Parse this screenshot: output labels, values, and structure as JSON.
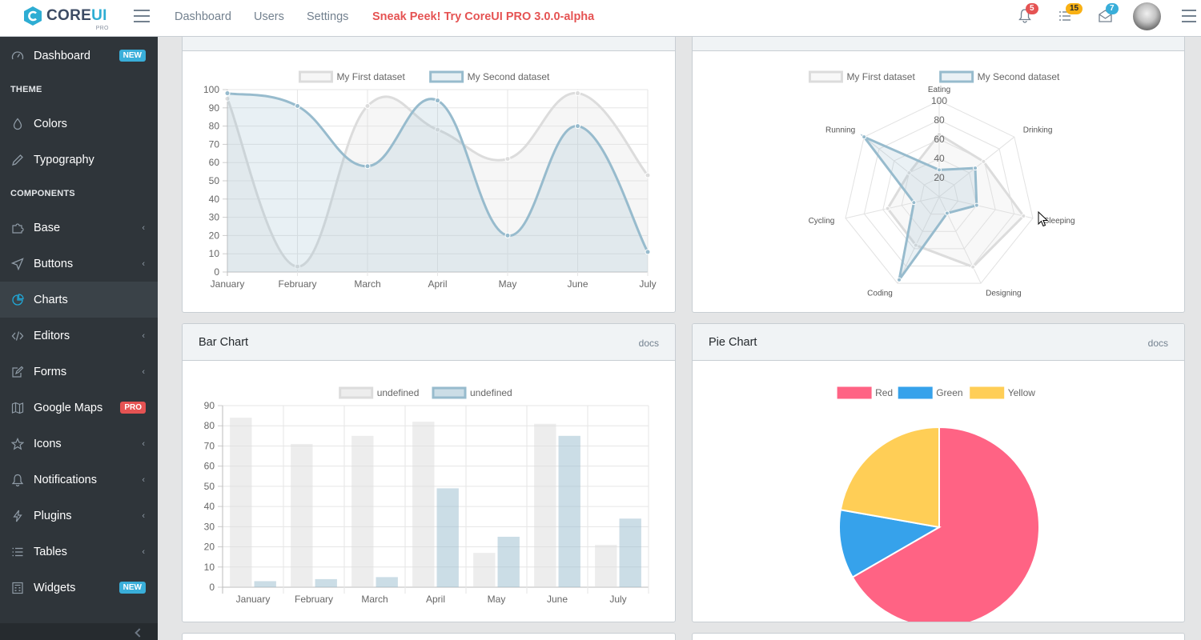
{
  "header": {
    "brand": {
      "main": "CORE",
      "accent": "UI",
      "tag": "PRO"
    },
    "nav": [
      "Dashboard",
      "Users",
      "Settings"
    ],
    "promo": "Sneak Peek! Try CoreUI PRO 3.0.0-alpha",
    "badges": {
      "notifications": "5",
      "tasks": "15",
      "messages": "7"
    },
    "colors": {
      "danger": "#e55353",
      "warning": "#f9b115",
      "info": "#39aed9"
    }
  },
  "sidebar": {
    "items": [
      {
        "label": "Dashboard",
        "badge": "NEW",
        "icon": "speedometer-icon"
      },
      {
        "label": "Colors",
        "icon": "drop-icon"
      },
      {
        "label": "Typography",
        "icon": "pencil-icon"
      },
      {
        "label": "Base",
        "icon": "puzzle-icon",
        "chevron": "‹"
      },
      {
        "label": "Buttons",
        "icon": "cursor-icon",
        "chevron": "‹"
      },
      {
        "label": "Charts",
        "icon": "pie-chart-icon"
      },
      {
        "label": "Editors",
        "icon": "code-icon",
        "chevron": "‹"
      },
      {
        "label": "Forms",
        "icon": "note-icon",
        "chevron": "‹"
      },
      {
        "label": "Google Maps",
        "badge": "PRO",
        "icon": "map-icon"
      },
      {
        "label": "Icons",
        "icon": "star-icon",
        "chevron": "‹"
      },
      {
        "label": "Notifications",
        "icon": "bell-icon",
        "chevron": "‹"
      },
      {
        "label": "Plugins",
        "icon": "energy-icon",
        "chevron": "‹"
      },
      {
        "label": "Tables",
        "icon": "list-icon",
        "chevron": "‹"
      },
      {
        "label": "Widgets",
        "badge": "NEW",
        "icon": "calculator-icon"
      }
    ],
    "titles": {
      "theme": "THEME",
      "components": "COMPONENTS"
    },
    "colors": {
      "new_badge": "#39aed9",
      "pro_badge": "#e55353",
      "accent": "#20a8d8"
    }
  },
  "cards": {
    "bar": {
      "title": "Bar Chart",
      "docs": "docs"
    },
    "pie": {
      "title": "Pie Chart",
      "docs": "docs"
    }
  },
  "chart_data": [
    {
      "type": "line",
      "title": "",
      "categories": [
        "January",
        "February",
        "March",
        "April",
        "May",
        "June",
        "July"
      ],
      "ylim": [
        0,
        100
      ],
      "yticks": [
        0,
        10,
        20,
        30,
        40,
        50,
        60,
        70,
        80,
        90,
        100
      ],
      "series": [
        {
          "name": "My First dataset",
          "values": [
            95,
            3,
            91,
            78,
            62,
            98,
            53
          ],
          "color": "#dcdcdc",
          "fill": "rgba(220,220,220,0.25)"
        },
        {
          "name": "My Second dataset",
          "values": [
            98,
            91,
            58,
            94,
            20,
            80,
            11
          ],
          "color": "#97bbcd",
          "fill": "rgba(151,187,205,0.22)"
        }
      ]
    },
    {
      "type": "radar",
      "title": "",
      "categories": [
        "Eating",
        "Drinking",
        "Sleeping",
        "Designing",
        "Coding",
        "Cycling",
        "Running"
      ],
      "rlim": [
        0,
        100
      ],
      "rticks": [
        20,
        40,
        60,
        80,
        100
      ],
      "series": [
        {
          "name": "My First dataset",
          "values": [
            65,
            59,
            90,
            81,
            56,
            55,
            40
          ],
          "color": "#dcdcdc",
          "fill": "rgba(220,220,220,0.2)"
        },
        {
          "name": "My Second dataset",
          "values": [
            28,
            48,
            40,
            19,
            96,
            27,
            100
          ],
          "color": "#97bbcd",
          "fill": "rgba(151,187,205,0.2)"
        }
      ]
    },
    {
      "type": "bar",
      "title": "Bar Chart",
      "categories": [
        "January",
        "February",
        "March",
        "April",
        "May",
        "June",
        "July"
      ],
      "ylim": [
        0,
        90
      ],
      "yticks": [
        0,
        10,
        20,
        30,
        40,
        50,
        60,
        70,
        80,
        90
      ],
      "series": [
        {
          "name": "undefined",
          "values": [
            84,
            71,
            75,
            82,
            17,
            81,
            21
          ],
          "color": "#dcdcdc",
          "fill": "rgba(220,220,220,0.5)"
        },
        {
          "name": "undefined",
          "values": [
            3,
            4,
            5,
            49,
            25,
            75,
            34
          ],
          "color": "#97bbcd",
          "fill": "rgba(151,187,205,0.5)"
        }
      ]
    },
    {
      "type": "pie",
      "title": "Pie Chart",
      "labels": [
        "Red",
        "Green",
        "Yellow"
      ],
      "values": [
        300,
        50,
        100
      ],
      "colors": [
        "#ff6384",
        "#36a2eb",
        "#ffce56"
      ]
    }
  ]
}
